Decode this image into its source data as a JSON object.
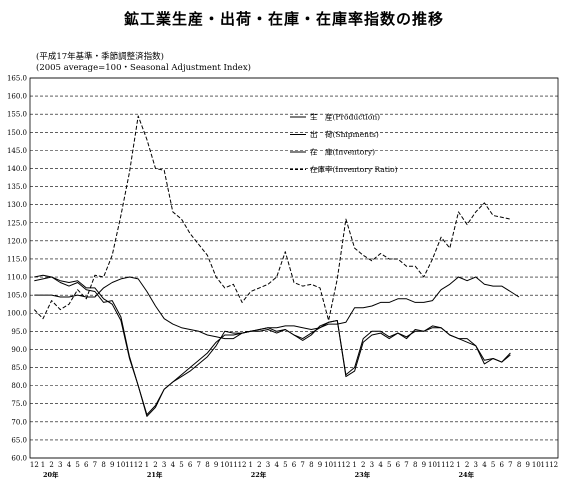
{
  "title": "鉱工業生産・出荷・在庫・在庫率指数の推移",
  "notes": [
    "(平成17年基準・季節調整済指数)",
    "(2005 average=100・Seasonal Adjustment Index)"
  ],
  "chart_data": {
    "type": "line",
    "title": "鉱工業生産・出荷・在庫・在庫率指数の推移",
    "ylim": [
      60,
      165
    ],
    "ytick_step": 5,
    "grid": true,
    "legend_position": "top-right",
    "x_month_labels": [
      "12",
      "1",
      "2",
      "3",
      "4",
      "5",
      "6",
      "7",
      "8",
      "9",
      "10",
      "11",
      "12",
      "1",
      "2",
      "3",
      "4",
      "5",
      "6",
      "7",
      "8",
      "9",
      "10",
      "11",
      "12",
      "1",
      "2",
      "3",
      "4",
      "5",
      "6",
      "7",
      "8",
      "9",
      "10",
      "11",
      "12",
      "1",
      "2",
      "3",
      "4",
      "5",
      "6",
      "7",
      "8",
      "9",
      "10",
      "11",
      "12",
      "1",
      "2",
      "3",
      "4",
      "5",
      "6",
      "7",
      "8",
      "9",
      "10",
      "11",
      "12"
    ],
    "year_labels": [
      {
        "label": "20年",
        "index": 1
      },
      {
        "label": "21年",
        "index": 13
      },
      {
        "label": "22年",
        "index": 25
      },
      {
        "label": "23年",
        "index": 37
      },
      {
        "label": "24年",
        "index": 49
      }
    ],
    "series": [
      {
        "name": "生　産(Production)",
        "style": "solid",
        "values": [
          109,
          109.5,
          110,
          108.5,
          107.5,
          108.5,
          106.5,
          106,
          103,
          103.5,
          99,
          88,
          80,
          71.5,
          74,
          79,
          81,
          82.5,
          84,
          86,
          88,
          91,
          95,
          94.5,
          94.5,
          95,
          95.5,
          96,
          95,
          95.5,
          94,
          93,
          94.5,
          96,
          97.5,
          98,
          82.5,
          84,
          92,
          94,
          94.5,
          93,
          94.5,
          93,
          95.5,
          95,
          96,
          96,
          94,
          93,
          93,
          91,
          87,
          87.5,
          86.5,
          89
        ]
      },
      {
        "name": "出　荷(Shipments)",
        "style": "solid",
        "values": [
          110,
          110.5,
          110,
          109,
          108.5,
          109,
          107,
          107,
          104,
          102.5,
          98,
          87.5,
          80,
          72,
          74.5,
          79,
          81,
          83,
          85,
          87,
          89,
          92,
          94,
          94,
          94.5,
          95,
          95,
          95.5,
          94.5,
          95.5,
          94,
          92.5,
          94,
          96.5,
          97.5,
          98,
          83,
          85,
          93,
          95,
          95,
          93.5,
          94.5,
          93.5,
          95,
          95,
          96.5,
          96,
          94,
          93,
          92,
          91,
          86,
          87.5,
          86.5,
          88.5
        ]
      },
      {
        "name": "在　庫(Inventory)",
        "style": "solid",
        "values": [
          105,
          105,
          105,
          104.5,
          104.5,
          105,
          104.5,
          104.5,
          107,
          108.5,
          109.5,
          110,
          109.5,
          106,
          102,
          98.5,
          97,
          96,
          95.5,
          95,
          94,
          93.5,
          93,
          93,
          94.5,
          95,
          95.5,
          96,
          96,
          96.5,
          96.5,
          96,
          95.5,
          96,
          97,
          97,
          97.5,
          101.5,
          101.5,
          102,
          103,
          103,
          104,
          104,
          103,
          103,
          103.5,
          106.5,
          108,
          110,
          109,
          110,
          108,
          107.5,
          107.5,
          106,
          104.5
        ]
      },
      {
        "name": "在庫率(Inventory Ratio)",
        "style": "dashed",
        "values": [
          101,
          98.5,
          103.5,
          101,
          102.5,
          106.5,
          104,
          110.5,
          110,
          116,
          127,
          139,
          154.5,
          148,
          140,
          139.5,
          128,
          126,
          122,
          119,
          116,
          110,
          107,
          108,
          103,
          106,
          107,
          108,
          110,
          117,
          108.5,
          107.5,
          108,
          107,
          98,
          109.5,
          126,
          118,
          116,
          114.5,
          116.5,
          115,
          115,
          113,
          113,
          110,
          115,
          121,
          118,
          128,
          124.5,
          128,
          130.5,
          127,
          126.5,
          126
        ]
      }
    ]
  }
}
